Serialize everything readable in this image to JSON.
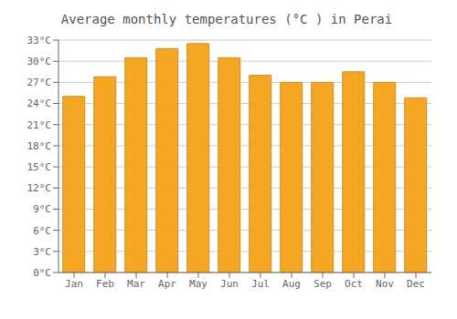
{
  "chart_data": {
    "type": "bar",
    "title": "Average monthly temperatures (°C ) in Perai",
    "categories": [
      "Jan",
      "Feb",
      "Mar",
      "Apr",
      "May",
      "Jun",
      "Jul",
      "Aug",
      "Sep",
      "Oct",
      "Nov",
      "Dec"
    ],
    "values": [
      25.0,
      27.8,
      30.5,
      31.8,
      32.5,
      30.5,
      28.0,
      27.0,
      27.0,
      28.5,
      27.0,
      24.8
    ],
    "color": "#F5A623",
    "ylim": [
      0,
      33
    ],
    "yticks": [
      {
        "value": 0,
        "label": "0°C"
      },
      {
        "value": 3,
        "label": "3°C"
      },
      {
        "value": 6,
        "label": "6°C"
      },
      {
        "value": 9,
        "label": "9°C"
      },
      {
        "value": 12,
        "label": "12°C"
      },
      {
        "value": 15,
        "label": "15°C"
      },
      {
        "value": 18,
        "label": "18°C"
      },
      {
        "value": 21,
        "label": "21°C"
      },
      {
        "value": 24,
        "label": "24°C"
      },
      {
        "value": 27,
        "label": "27°C"
      },
      {
        "value": 30,
        "label": "30°C"
      },
      {
        "value": 33,
        "label": "33°C"
      }
    ],
    "grid": true
  }
}
